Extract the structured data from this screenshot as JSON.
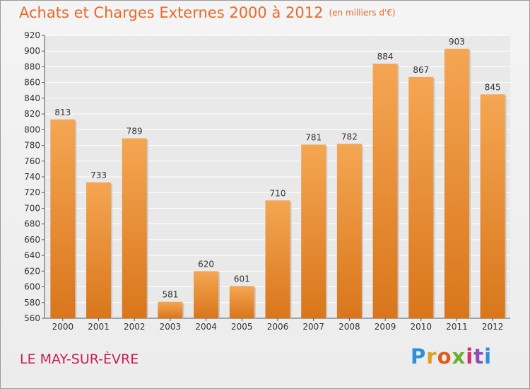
{
  "title": "Achats et Charges Externes 2000 à 2012",
  "unit_label": "(en milliers d'€)",
  "place": "LE MAY-SUR-ÈVRE",
  "logo_text": "Proxiti",
  "colors": {
    "bar_light": "#f5a652",
    "bar_dark": "#d9761c",
    "title": "#e66a2a",
    "place": "#c81d55"
  },
  "chart_data": {
    "type": "bar",
    "categories": [
      "2000",
      "2001",
      "2002",
      "2003",
      "2004",
      "2005",
      "2006",
      "2007",
      "2008",
      "2009",
      "2010",
      "2011",
      "2012"
    ],
    "values": [
      813,
      733,
      789,
      581,
      620,
      601,
      710,
      781,
      782,
      884,
      867,
      903,
      845
    ],
    "ylim": [
      560,
      920
    ],
    "ytick_step": 20,
    "grid": true,
    "data_labels": true
  }
}
